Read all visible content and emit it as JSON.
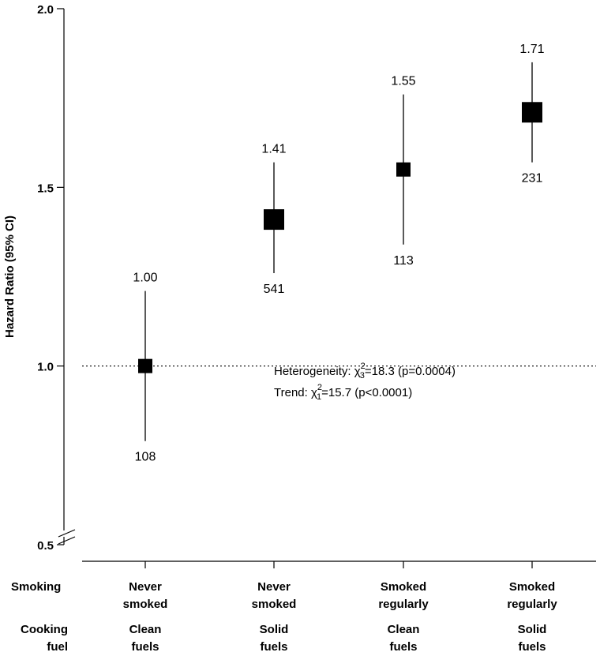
{
  "chart_data": {
    "type": "forest",
    "ylabel": "Hazard Ratio (95% CI)",
    "ylim": [
      0.5,
      2.0
    ],
    "yaxis_break": true,
    "yticks": [
      {
        "value": 0.5,
        "label": "0.5"
      },
      {
        "value": 1.0,
        "label": "1.0"
      },
      {
        "value": 1.5,
        "label": "1.5"
      },
      {
        "value": 2.0,
        "label": "2.0"
      }
    ],
    "reference_line": 1.0,
    "points": [
      {
        "smoking": [
          "Never",
          "smoked"
        ],
        "fuel": [
          "Clean",
          "fuels"
        ],
        "hr": 1.0,
        "hr_label": "1.00",
        "ci": [
          0.79,
          1.21
        ],
        "n": "108",
        "marker_size": 18
      },
      {
        "smoking": [
          "Never",
          "smoked"
        ],
        "fuel": [
          "Solid",
          "fuels"
        ],
        "hr": 1.41,
        "hr_label": "1.41",
        "ci": [
          1.26,
          1.57
        ],
        "n": "541",
        "marker_size": 26
      },
      {
        "smoking": [
          "Smoked",
          "regularly"
        ],
        "fuel": [
          "Clean",
          "fuels"
        ],
        "hr": 1.55,
        "hr_label": "1.55",
        "ci": [
          1.34,
          1.76
        ],
        "n": "113",
        "marker_size": 18
      },
      {
        "smoking": [
          "Smoked",
          "regularly"
        ],
        "fuel": [
          "Solid",
          "fuels"
        ],
        "hr": 1.71,
        "hr_label": "1.71",
        "ci": [
          1.57,
          1.85
        ],
        "n": "231",
        "marker_size": 26
      }
    ],
    "annotations": {
      "heterogeneity": {
        "prefix": "Heterogeneity: ",
        "chi": "χ",
        "sup": "2",
        "sub": "3",
        "rest": "=18.3 (p=0.0004)"
      },
      "trend": {
        "prefix": "Trend: ",
        "chi": "χ",
        "sup": "2",
        "sub": "1",
        "rest": "=15.7 (p<0.0001)"
      }
    }
  },
  "rows": {
    "smoking_label": "Smoking",
    "cooking_label_1": "Cooking",
    "cooking_label_2": "fuel"
  }
}
